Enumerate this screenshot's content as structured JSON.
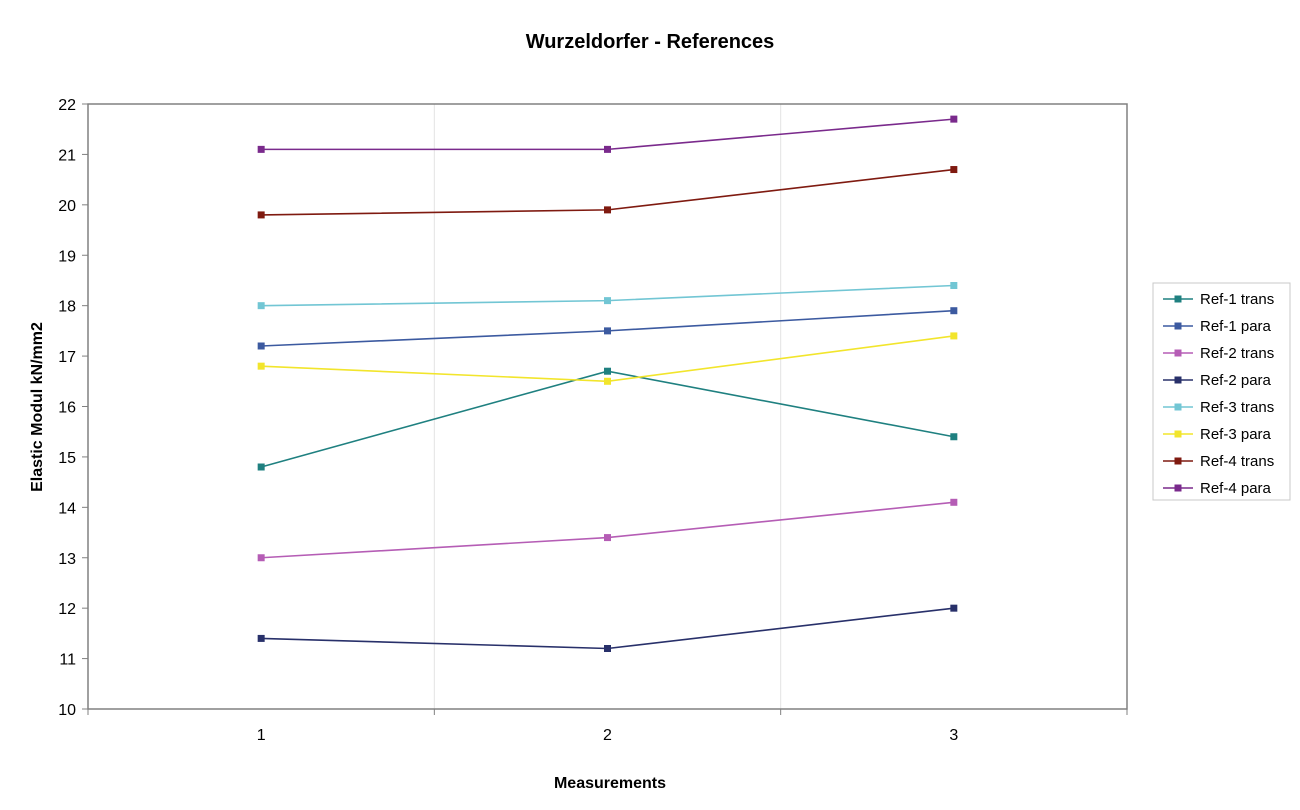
{
  "chart_data": {
    "type": "line",
    "title": "Wurzeldorfer - References",
    "xlabel": "Measurements",
    "ylabel": "Elastic Modul kN/mm2",
    "categories": [
      "1",
      "2",
      "3"
    ],
    "ylim": [
      10,
      22
    ],
    "yticks": [
      "10",
      "11",
      "12",
      "13",
      "14",
      "15",
      "16",
      "17",
      "18",
      "19",
      "20",
      "21",
      "22"
    ],
    "grid": {
      "vertical": true,
      "horizontal": false
    },
    "legend_position": "right",
    "series": [
      {
        "name": "Ref-1 trans",
        "color": "#1F8080",
        "values": [
          14.8,
          16.7,
          15.4
        ]
      },
      {
        "name": "Ref-1 para",
        "color": "#3C5AA0",
        "values": [
          17.2,
          17.5,
          17.9
        ]
      },
      {
        "name": "Ref-2 trans",
        "color": "#B55DB5",
        "values": [
          13.0,
          13.4,
          14.1
        ]
      },
      {
        "name": "Ref-2 para",
        "color": "#28306A",
        "values": [
          11.4,
          11.2,
          12.0
        ]
      },
      {
        "name": "Ref-3 trans",
        "color": "#72C6D4",
        "values": [
          18.0,
          18.1,
          18.4
        ]
      },
      {
        "name": "Ref-3 para",
        "color": "#F2E52C",
        "values": [
          16.8,
          16.5,
          17.4
        ]
      },
      {
        "name": "Ref-4 trans",
        "color": "#7F1A10",
        "values": [
          19.8,
          19.9,
          20.7
        ]
      },
      {
        "name": "Ref-4 para",
        "color": "#7A2A8C",
        "values": [
          21.1,
          21.1,
          21.7
        ]
      }
    ]
  }
}
